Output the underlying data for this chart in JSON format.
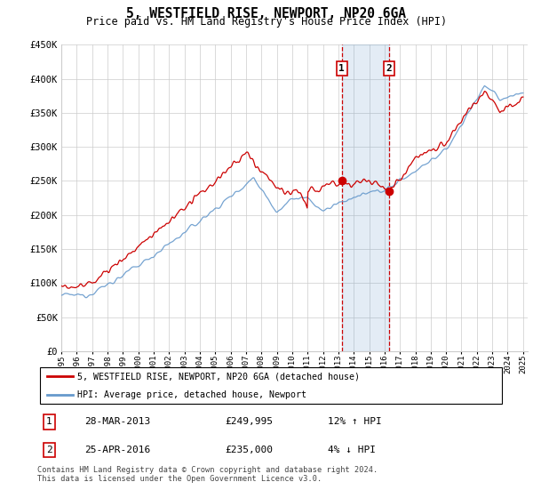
{
  "title": "5, WESTFIELD RISE, NEWPORT, NP20 6GA",
  "subtitle": "Price paid vs. HM Land Registry's House Price Index (HPI)",
  "ytick_values": [
    0,
    50000,
    100000,
    150000,
    200000,
    250000,
    300000,
    350000,
    400000,
    450000
  ],
  "year_start": 1995,
  "year_end": 2025,
  "legend_property": "5, WESTFIELD RISE, NEWPORT, NP20 6GA (detached house)",
  "legend_hpi": "HPI: Average price, detached house, Newport",
  "transaction1_date": "28-MAR-2013",
  "transaction1_price": "£249,995",
  "transaction1_info": "12% ↑ HPI",
  "transaction1_year": 2013.23,
  "transaction1_value": 249995,
  "transaction2_date": "25-APR-2016",
  "transaction2_price": "£235,000",
  "transaction2_info": "4% ↓ HPI",
  "transaction2_year": 2016.31,
  "transaction2_value": 235000,
  "property_color": "#cc0000",
  "hpi_color": "#6699cc",
  "grid_color": "#cccccc",
  "footer": "Contains HM Land Registry data © Crown copyright and database right 2024.\nThis data is licensed under the Open Government Licence v3.0."
}
